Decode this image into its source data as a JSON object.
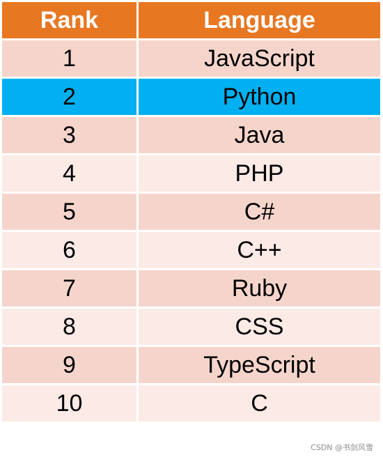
{
  "table": {
    "headers": {
      "rank": "Rank",
      "language": "Language"
    },
    "rows": [
      {
        "rank": "1",
        "language": "JavaScript"
      },
      {
        "rank": "2",
        "language": "Python"
      },
      {
        "rank": "3",
        "language": "Java"
      },
      {
        "rank": "4",
        "language": "PHP"
      },
      {
        "rank": "5",
        "language": "C#"
      },
      {
        "rank": "6",
        "language": "C++"
      },
      {
        "rank": "7",
        "language": "Ruby"
      },
      {
        "rank": "8",
        "language": "CSS"
      },
      {
        "rank": "9",
        "language": "TypeScript"
      },
      {
        "rank": "10",
        "language": "C"
      }
    ],
    "highlighted_rank": "2"
  },
  "colors": {
    "header": "#e87722",
    "row_odd": "#f5d5cb",
    "row_even": "#fbeae6",
    "highlight": "#00b0f0"
  },
  "watermark": "CSDN @书剑风雪"
}
